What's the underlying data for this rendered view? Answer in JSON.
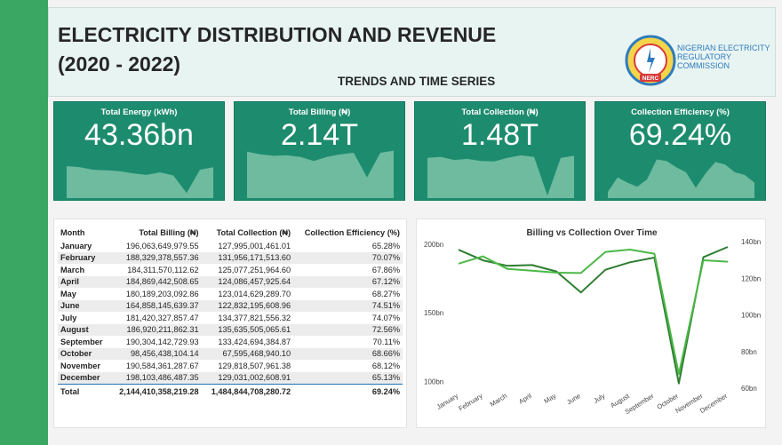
{
  "header": {
    "title_line1": "ELECTRICITY DISTRIBUTION AND REVENUE",
    "title_line2": "(2020 - 2022)",
    "subtitle": "TRENDS AND TIME SERIES",
    "logo_text_line1": "NIGERIAN ELECTRICITY",
    "logo_text_line2": "REGULATORY COMMISSION",
    "logo_badge": "NERC"
  },
  "kpis": [
    {
      "label": "Total Energy (kWh)",
      "value": "43.36bn",
      "spark": [
        0.62,
        0.6,
        0.55,
        0.54,
        0.52,
        0.48,
        0.45,
        0.5,
        0.44,
        0.1,
        0.55,
        0.6
      ]
    },
    {
      "label": "Total Billing (₦)",
      "value": "2.14T",
      "spark": [
        0.9,
        0.85,
        0.82,
        0.83,
        0.8,
        0.72,
        0.8,
        0.85,
        0.88,
        0.4,
        0.88,
        0.92
      ]
    },
    {
      "label": "Total Collection (₦)",
      "value": "1.48T",
      "spark": [
        0.78,
        0.8,
        0.74,
        0.76,
        0.72,
        0.71,
        0.78,
        0.83,
        0.8,
        0.05,
        0.78,
        0.82
      ]
    },
    {
      "label": "Collection Efficiency (%)",
      "value": "69.24%",
      "spark": [
        0.12,
        0.4,
        0.3,
        0.22,
        0.36,
        0.75,
        0.72,
        0.6,
        0.5,
        0.2,
        0.48,
        0.7,
        0.65,
        0.5,
        0.45,
        0.3
      ]
    }
  ],
  "table": {
    "headers": [
      "Month",
      "Total Billing (₦)",
      "Total Collection (₦)",
      "Collection Efficiency (%)"
    ],
    "rows": [
      [
        "January",
        "196,063,649,979.55",
        "127,995,001,461.01",
        "65.28%"
      ],
      [
        "February",
        "188,329,378,557.36",
        "131,956,171,513.60",
        "70.07%"
      ],
      [
        "March",
        "184,311,570,112.62",
        "125,077,251,964.60",
        "67.86%"
      ],
      [
        "April",
        "184,869,442,508.65",
        "124,086,457,925.64",
        "67.12%"
      ],
      [
        "May",
        "180,189,203,092.86",
        "123,014,629,289.70",
        "68.27%"
      ],
      [
        "June",
        "164,858,145,639.37",
        "122,832,195,608.96",
        "74.51%"
      ],
      [
        "July",
        "181,420,327,857.47",
        "134,377,821,556.32",
        "74.07%"
      ],
      [
        "August",
        "186,920,211,862.31",
        "135,635,505,065.61",
        "72.56%"
      ],
      [
        "September",
        "190,304,142,729.93",
        "133,424,694,384.87",
        "70.11%"
      ],
      [
        "October",
        "98,456,438,104.14",
        "67,595,468,940.10",
        "68.66%"
      ],
      [
        "November",
        "190,584,361,287.67",
        "129,818,507,961.38",
        "68.12%"
      ],
      [
        "December",
        "198,103,486,487.35",
        "129,031,002,608.91",
        "65.13%"
      ]
    ],
    "total": [
      "Total",
      "2,144,410,358,219.28",
      "1,484,844,708,280.72",
      "69.24%"
    ]
  },
  "chart_data": {
    "type": "line",
    "title": "Billing vs Collection Over Time",
    "categories": [
      "January",
      "February",
      "March",
      "April",
      "May",
      "June",
      "July",
      "August",
      "September",
      "October",
      "November",
      "December"
    ],
    "series": [
      {
        "name": "Total Billing (₦)",
        "axis": "left",
        "color": "#2e7d32",
        "values": [
          196.06,
          188.33,
          184.31,
          184.87,
          180.19,
          164.86,
          181.42,
          186.92,
          190.3,
          98.46,
          190.58,
          198.1
        ]
      },
      {
        "name": "Total Collection (₦)",
        "axis": "right",
        "color": "#4cb847",
        "values": [
          128.0,
          131.96,
          125.08,
          124.09,
          123.01,
          122.83,
          134.38,
          135.64,
          133.42,
          67.6,
          129.82,
          129.03
        ]
      }
    ],
    "y_left": {
      "ticks": [
        "100bn",
        "150bn",
        "200bn"
      ],
      "range": [
        95,
        202
      ]
    },
    "y_right": {
      "ticks": [
        "60bn",
        "80bn",
        "100bn",
        "120bn",
        "140bn"
      ],
      "range": [
        60,
        140
      ]
    },
    "grid": false,
    "legend": "none"
  }
}
